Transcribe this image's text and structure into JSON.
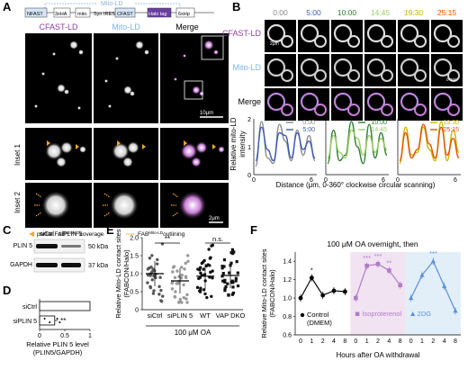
{
  "panel_letters": {
    "A": "A",
    "B": "B",
    "C": "C",
    "D": "D",
    "E": "E",
    "F": "F"
  },
  "panelA": {
    "construct": {
      "lbl_mitold": "Mito-LD",
      "seg1": "NFAST",
      "seg2": "3xHA",
      "seg3": "mito",
      "seg4": "Syn IRES",
      "seg5": "CFAST",
      "seg6": "Halo tag",
      "seg7": "6xHp",
      "lbl_linker": "linker"
    },
    "col_titles": [
      "CFAST-LD",
      "Mito-LD",
      "Merge"
    ],
    "scale_top": "10μm",
    "inset_labels": [
      "Inset 1",
      "Inset 2"
    ],
    "scale_inset": "2μm",
    "legend": [
      "partial FAB",
      "Mito-LD",
      "coverage",
      "FAB",
      "Mito-LD",
      "outlining"
    ]
  },
  "panelB": {
    "times": [
      "0:00",
      "5:00",
      "10:00",
      "14:45",
      "19:30",
      "25:15"
    ],
    "time_colors": [
      "#8a8a8a",
      "#3d5ab5",
      "#2e7d32",
      "#9ccc65",
      "#c9b400",
      "#e65100"
    ],
    "rows": [
      "CFAST-LD",
      "Mito-LD",
      "Merge"
    ],
    "scale": "2μm",
    "angle": "0-360°",
    "ylabel": [
      "Relative mito-LD",
      "intensity"
    ],
    "xlabel": "Distance (μm, 0-360° clockwise circular scanning)",
    "legend_groups": [
      [
        "0:00",
        "5:00"
      ],
      [
        "10:00",
        "14:45"
      ],
      [
        "19:30",
        "25:15"
      ]
    ],
    "y_ticks": [
      "2",
      "1",
      "0"
    ],
    "x_ticks": [
      "0",
      "6",
      "0",
      "6",
      "0",
      "6"
    ]
  },
  "panelC": {
    "lanes": [
      "siCtrl",
      "siPLIN 5"
    ],
    "bands": [
      "PLIN 5",
      "GAPDH"
    ],
    "mw": [
      "50 kDa",
      "37 kDa"
    ]
  },
  "chart_data": [
    {
      "type": "bar",
      "panel": "D",
      "categories": [
        "siCtrl",
        "siPLIN 5"
      ],
      "values": [
        1.0,
        0.3
      ],
      "errors": [
        0,
        0.06
      ],
      "xlabel": "Relative PLIN 5 level (PLIN5/GAPDH)",
      "xlim": [
        0,
        1
      ],
      "xticks": [
        "0",
        "0.5",
        "1"
      ],
      "significance": "**"
    },
    {
      "type": "scatter",
      "panel": "E",
      "categories": [
        "siCtrl",
        "siPLIN 5",
        "WT",
        "VAP DKO"
      ],
      "means": [
        1.0,
        0.8,
        0.93,
        0.95
      ],
      "ylabel": "Relative Mito-LD contact sites (FABCON/Halo)",
      "ylim": [
        0,
        2
      ],
      "yticks": [
        "0",
        "0.5",
        "1.0",
        "1.5",
        "2.0"
      ],
      "treatment": "100 μM OA",
      "annotations": [
        "**",
        "n.s."
      ]
    },
    {
      "type": "line",
      "panel": "F",
      "title": "100 μM OA overnight, then",
      "x": [
        0,
        1,
        2,
        4,
        8
      ],
      "xticks": [
        "0",
        "1",
        "2",
        "4",
        "8",
        "0",
        "1",
        "2",
        "4",
        "8",
        "0",
        "1",
        "2",
        "4",
        "8"
      ],
      "ylabel": "Relative Mito-LD contact sites (FABCON/Halo)",
      "xlabel": "Hours after OA withdrawal",
      "ylim": [
        0.6,
        1.5
      ],
      "yticks": [
        "0.6",
        "0.8",
        "1.0",
        "1.2",
        "1.4"
      ],
      "series": [
        {
          "name": "Control (DMEM)",
          "values": [
            1.0,
            1.22,
            1.03,
            1.08,
            1.07
          ],
          "color": "#000000"
        },
        {
          "name": "Isoproterenol",
          "values": [
            1.0,
            1.35,
            1.37,
            1.3,
            1.14
          ],
          "color": "#b07cc6"
        },
        {
          "name": "2DG",
          "values": [
            1.0,
            1.25,
            1.4,
            1.13,
            0.86
          ],
          "color": "#5b8fd6"
        }
      ],
      "stars": [
        "*",
        "***",
        "***",
        "**",
        "***"
      ]
    }
  ]
}
